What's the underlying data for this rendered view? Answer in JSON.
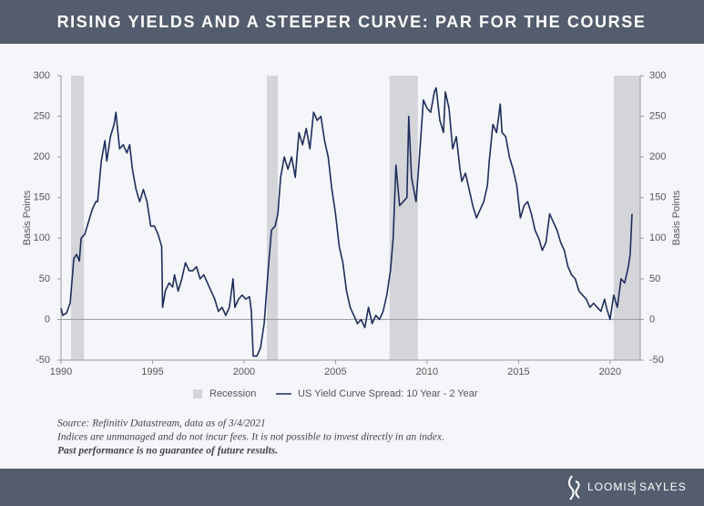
{
  "chart_data": {
    "type": "line",
    "title": "RISING YIELDS AND A STEEPER CURVE: PAR FOR THE COURSE",
    "ylabel": "Basis Points",
    "y2label": "Basis Points",
    "xlim": [
      1990,
      2021.65
    ],
    "xticks": [
      1990,
      1995,
      2000,
      2005,
      2010,
      2015,
      2020
    ],
    "ylim": [
      -50,
      300
    ],
    "yticks": [
      -50,
      0,
      50,
      100,
      150,
      200,
      250,
      300
    ],
    "y2lim": [
      -50,
      300
    ],
    "y2ticks": [
      -50,
      0,
      50,
      100,
      150,
      200,
      250,
      300
    ],
    "recessions": {
      "name": "Recession",
      "color": "#d3d5d9",
      "spans": [
        [
          1990.55,
          1991.25
        ],
        [
          2001.25,
          2001.85
        ],
        [
          2007.95,
          2009.5
        ],
        [
          2020.2,
          2021.65
        ]
      ]
    },
    "x": [
      1990.0,
      1990.1,
      1990.3,
      1990.5,
      1990.7,
      1990.85,
      1991.0,
      1991.1,
      1991.3,
      1991.5,
      1991.7,
      1991.9,
      1992.0,
      1992.2,
      1992.4,
      1992.5,
      1992.7,
      1992.9,
      1993.0,
      1993.2,
      1993.4,
      1993.6,
      1993.75,
      1993.9,
      1994.1,
      1994.3,
      1994.5,
      1994.7,
      1994.9,
      1995.1,
      1995.3,
      1995.5,
      1995.55,
      1995.7,
      1995.9,
      1996.1,
      1996.2,
      1996.4,
      1996.6,
      1996.8,
      1997.0,
      1997.2,
      1997.4,
      1997.6,
      1997.8,
      1998.0,
      1998.2,
      1998.4,
      1998.6,
      1998.8,
      1999.0,
      1999.2,
      1999.4,
      1999.5,
      1999.7,
      1999.9,
      2000.1,
      2000.3,
      2000.4,
      2000.5,
      2000.7,
      2000.9,
      2001.0,
      2001.1,
      2001.3,
      2001.5,
      2001.7,
      2001.85,
      2002.0,
      2002.2,
      2002.4,
      2002.6,
      2002.8,
      2003.0,
      2003.2,
      2003.4,
      2003.6,
      2003.8,
      2004.0,
      2004.2,
      2004.4,
      2004.6,
      2004.8,
      2005.0,
      2005.2,
      2005.4,
      2005.6,
      2005.8,
      2006.0,
      2006.2,
      2006.4,
      2006.6,
      2006.8,
      2007.0,
      2007.2,
      2007.4,
      2007.6,
      2007.8,
      2008.0,
      2008.15,
      2008.3,
      2008.5,
      2008.7,
      2008.9,
      2009.0,
      2009.15,
      2009.4,
      2009.6,
      2009.8,
      2010.0,
      2010.2,
      2010.4,
      2010.5,
      2010.7,
      2010.9,
      2011.0,
      2011.2,
      2011.4,
      2011.6,
      2011.8,
      2011.9,
      2012.1,
      2012.3,
      2012.5,
      2012.7,
      2012.9,
      2013.1,
      2013.3,
      2013.4,
      2013.6,
      2013.8,
      2014.0,
      2014.1,
      2014.3,
      2014.5,
      2014.7,
      2014.9,
      2015.1,
      2015.3,
      2015.5,
      2015.7,
      2015.9,
      2016.1,
      2016.3,
      2016.5,
      2016.7,
      2016.9,
      2017.1,
      2017.3,
      2017.5,
      2017.7,
      2017.9,
      2018.1,
      2018.3,
      2018.5,
      2018.7,
      2018.9,
      2019.1,
      2019.3,
      2019.5,
      2019.7,
      2019.8,
      2020.0,
      2020.2,
      2020.4,
      2020.6,
      2020.8,
      2021.0,
      2021.1,
      2021.2
    ],
    "series": [
      {
        "name": "US Yield Curve Spread: 10 Year - 2 Year",
        "color": "#1f2d5c",
        "values": [
          14,
          5,
          8,
          20,
          75,
          80,
          72,
          100,
          105,
          120,
          135,
          145,
          145,
          195,
          220,
          195,
          225,
          240,
          255,
          210,
          215,
          205,
          215,
          185,
          160,
          145,
          160,
          145,
          115,
          115,
          105,
          90,
          15,
          35,
          45,
          40,
          55,
          35,
          50,
          70,
          60,
          60,
          65,
          50,
          55,
          45,
          35,
          25,
          10,
          15,
          5,
          15,
          50,
          15,
          25,
          30,
          25,
          28,
          10,
          -45,
          -45,
          -35,
          -20,
          -5,
          55,
          110,
          115,
          130,
          175,
          200,
          185,
          200,
          175,
          230,
          215,
          235,
          210,
          255,
          245,
          250,
          220,
          200,
          160,
          130,
          90,
          70,
          35,
          15,
          5,
          -5,
          0,
          -10,
          15,
          -5,
          5,
          0,
          10,
          30,
          60,
          100,
          190,
          140,
          145,
          150,
          250,
          175,
          145,
          205,
          270,
          260,
          255,
          280,
          285,
          245,
          230,
          280,
          260,
          210,
          225,
          185,
          170,
          180,
          160,
          140,
          125,
          135,
          145,
          165,
          195,
          240,
          230,
          265,
          230,
          225,
          200,
          185,
          165,
          125,
          140,
          145,
          130,
          110,
          100,
          85,
          95,
          130,
          120,
          110,
          95,
          85,
          65,
          55,
          50,
          35,
          30,
          25,
          15,
          20,
          15,
          10,
          25,
          15,
          0,
          30,
          15,
          50,
          45,
          65,
          80,
          130
        ]
      }
    ]
  },
  "notes": [
    "Source: Refinitiv Datastream, data as of 3/4/2021",
    "Indices are unmanaged and do not incur fees. It is not possible to invest directly in an index.",
    "Past performance is no guarantee of future results."
  ],
  "logo": [
    "LOOMIS",
    "SAYLES"
  ]
}
